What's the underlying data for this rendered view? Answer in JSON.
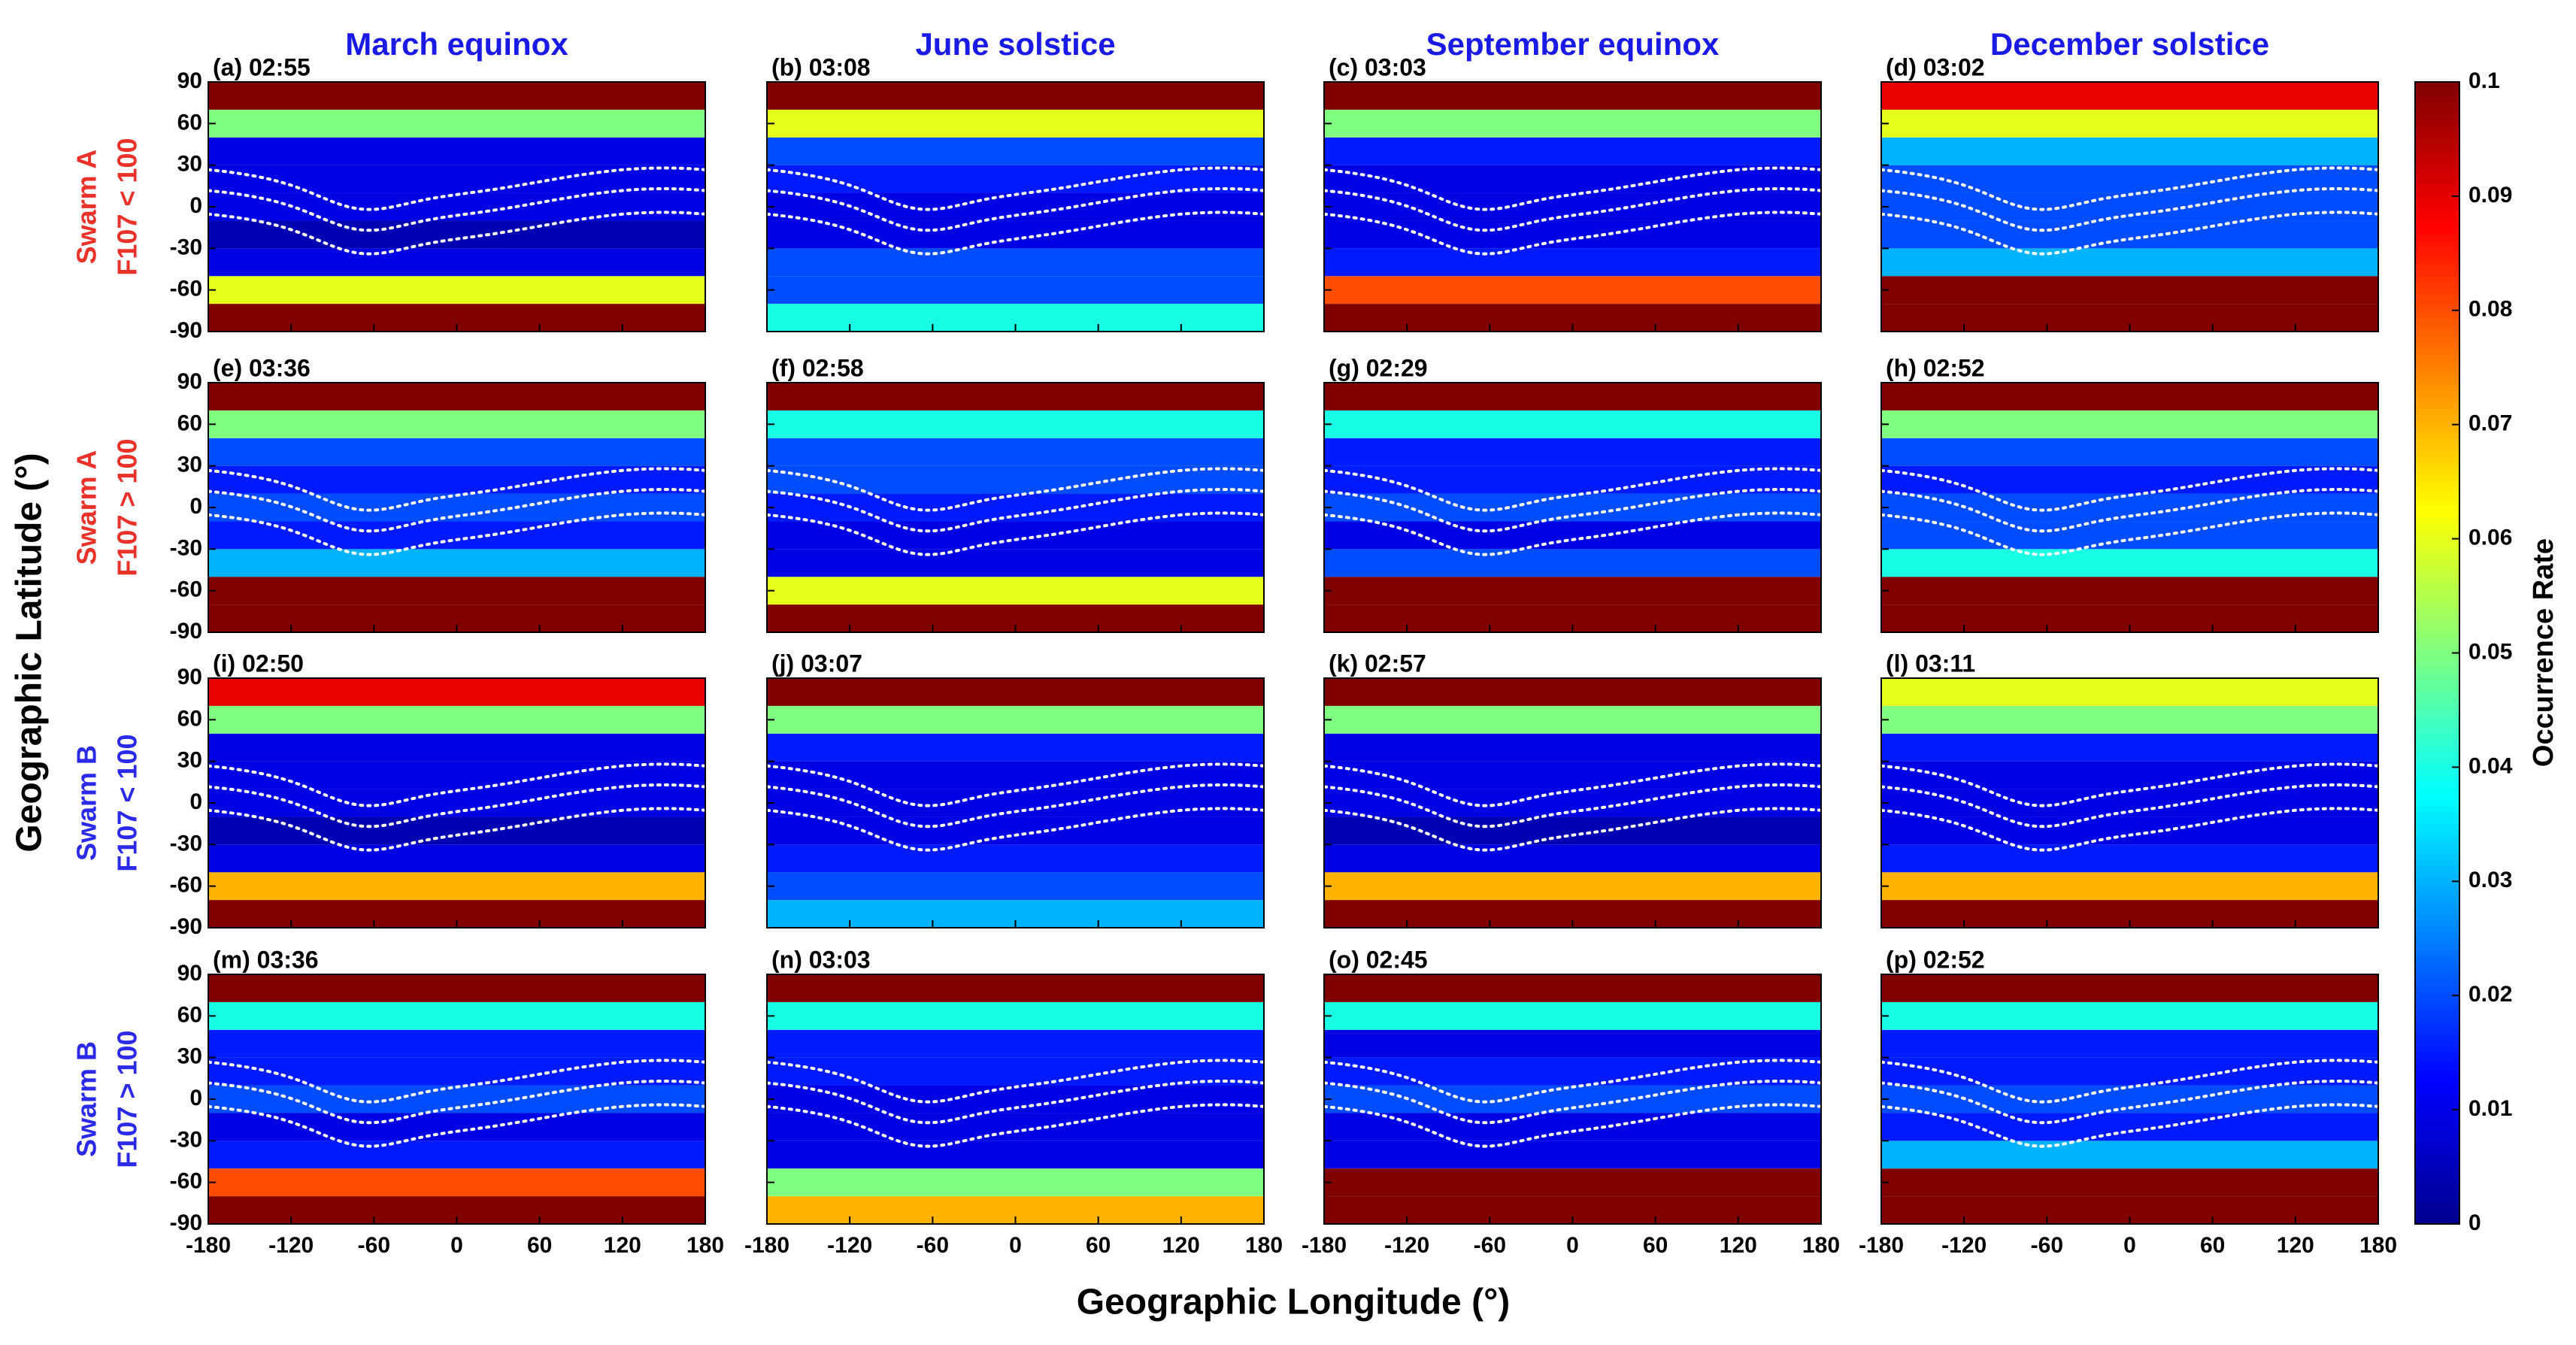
{
  "chart_data": {
    "type": "heatmap-grid",
    "column_titles": [
      "March equinox",
      "June solstice",
      "September equinox",
      "December solstice"
    ],
    "column_title_color": "#1a1ae6",
    "row_labels": [
      {
        "name": "Swarm A",
        "condition": "F107 < 100",
        "color": "#e8322a"
      },
      {
        "name": "Swarm A",
        "condition": "F107 > 100",
        "color": "#e8322a"
      },
      {
        "name": "Swarm B",
        "condition": "F107 < 100",
        "color": "#2a2ae8"
      },
      {
        "name": "Swarm B",
        "condition": "F107 > 100",
        "color": "#2a2ae8"
      }
    ],
    "xlabel": "Geographic Longitude (°)",
    "ylabel": "Geographic Latitude (°)",
    "xlim": [
      -180,
      180
    ],
    "ylim": [
      -90,
      90
    ],
    "xticks": [
      -180,
      -120,
      -60,
      0,
      60,
      120,
      180
    ],
    "yticks": [
      -90,
      -60,
      -30,
      0,
      30,
      60,
      90
    ],
    "lat_bins": [
      -90,
      -70,
      -50,
      -30,
      -10,
      10,
      30,
      50,
      70,
      90
    ],
    "colorbar": {
      "label": "Occurrence Rate",
      "lim": [
        0,
        0.1
      ],
      "ticks": [
        0,
        0.01,
        0.02,
        0.03,
        0.04,
        0.05,
        0.06,
        0.07,
        0.08,
        0.09,
        0.1
      ]
    },
    "panels": [
      {
        "title": "(a) 02:55",
        "values": [
          0.1,
          0.06,
          0.01,
          0.005,
          0.01,
          0.01,
          0.01,
          0.05,
          0.1
        ]
      },
      {
        "title": "(b) 03:08",
        "values": [
          0.04,
          0.02,
          0.02,
          0.01,
          0.01,
          0.015,
          0.02,
          0.06,
          0.1
        ]
      },
      {
        "title": "(c) 03:03",
        "values": [
          0.1,
          0.08,
          0.015,
          0.01,
          0.01,
          0.01,
          0.015,
          0.05,
          0.1
        ]
      },
      {
        "title": "(d) 03:02",
        "values": [
          0.1,
          0.1,
          0.03,
          0.02,
          0.02,
          0.02,
          0.03,
          0.06,
          0.09
        ]
      },
      {
        "title": "(e) 03:36",
        "values": [
          0.1,
          0.1,
          0.03,
          0.015,
          0.02,
          0.015,
          0.02,
          0.05,
          0.1
        ]
      },
      {
        "title": "(f) 02:58",
        "values": [
          0.1,
          0.06,
          0.01,
          0.01,
          0.015,
          0.02,
          0.02,
          0.04,
          0.1
        ]
      },
      {
        "title": "(g) 02:29",
        "values": [
          0.1,
          0.1,
          0.02,
          0.01,
          0.02,
          0.015,
          0.015,
          0.04,
          0.1
        ]
      },
      {
        "title": "(h) 02:52",
        "values": [
          0.1,
          0.1,
          0.04,
          0.02,
          0.02,
          0.015,
          0.02,
          0.05,
          0.1
        ]
      },
      {
        "title": "(i) 02:50",
        "values": [
          0.1,
          0.07,
          0.01,
          0.005,
          0.01,
          0.01,
          0.01,
          0.05,
          0.09
        ]
      },
      {
        "title": "(j) 03:07",
        "values": [
          0.03,
          0.02,
          0.015,
          0.01,
          0.01,
          0.01,
          0.015,
          0.05,
          0.1
        ]
      },
      {
        "title": "(k) 02:57",
        "values": [
          0.1,
          0.07,
          0.01,
          0.005,
          0.01,
          0.01,
          0.01,
          0.05,
          0.1
        ]
      },
      {
        "title": "(l) 03:11",
        "values": [
          0.1,
          0.07,
          0.015,
          0.01,
          0.01,
          0.01,
          0.015,
          0.05,
          0.06
        ]
      },
      {
        "title": "(m) 03:36",
        "values": [
          0.1,
          0.08,
          0.015,
          0.01,
          0.02,
          0.015,
          0.015,
          0.04,
          0.1
        ]
      },
      {
        "title": "(n) 03:03",
        "values": [
          0.07,
          0.05,
          0.01,
          0.01,
          0.01,
          0.015,
          0.015,
          0.04,
          0.1
        ]
      },
      {
        "title": "(o) 02:45",
        "values": [
          0.1,
          0.1,
          0.01,
          0.01,
          0.02,
          0.015,
          0.01,
          0.04,
          0.1
        ]
      },
      {
        "title": "(p) 02:52",
        "values": [
          0.1,
          0.1,
          0.03,
          0.015,
          0.02,
          0.015,
          0.015,
          0.04,
          0.1
        ]
      }
    ]
  }
}
